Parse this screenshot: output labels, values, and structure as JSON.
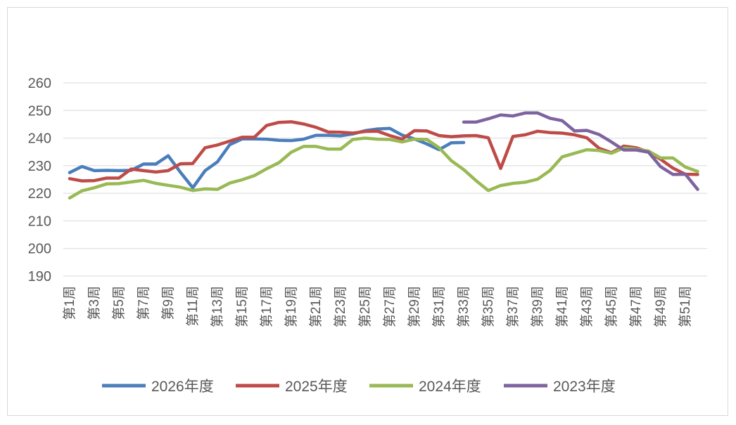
{
  "chart_data": {
    "type": "line",
    "title": "",
    "xlabel": "",
    "ylabel": "",
    "ylim": [
      190,
      260
    ],
    "yticks": [
      190,
      200,
      210,
      220,
      230,
      240,
      250,
      260
    ],
    "grid": "horizontal",
    "legend": "bottom",
    "categories": [
      "第1周",
      "第2周",
      "第3周",
      "第4周",
      "第5周",
      "第6周",
      "第7周",
      "第8周",
      "第9周",
      "第10周",
      "第11周",
      "第12周",
      "第13周",
      "第14周",
      "第15周",
      "第16周",
      "第17周",
      "第18周",
      "第19周",
      "第20周",
      "第21周",
      "第22周",
      "第23周",
      "第24周",
      "第25周",
      "第26周",
      "第27周",
      "第28周",
      "第29周",
      "第30周",
      "第31周",
      "第32周",
      "第33周",
      "第34周",
      "第35周",
      "第36周",
      "第37周",
      "第38周",
      "第39周",
      "第40周",
      "第41周",
      "第42周",
      "第43周",
      "第44周",
      "第45周",
      "第46周",
      "第47周",
      "第48周",
      "第49周",
      "第50周",
      "第51周",
      "第52周"
    ],
    "tick_labels": [
      "第1周",
      "第3周",
      "第5周",
      "第7周",
      "第9周",
      "第11周",
      "第13周",
      "第15周",
      "第17周",
      "第19周",
      "第21周",
      "第23周",
      "第25周",
      "第27周",
      "第29周",
      "第31周",
      "第33周",
      "第35周",
      "第37周",
      "第39周",
      "第41周",
      "第43周",
      "第45周",
      "第47周",
      "第49周",
      "第51周"
    ],
    "series": [
      {
        "name": "2026年度",
        "color": "#4a7ebb",
        "values": [
          227.5,
          229.7,
          228.2,
          228.3,
          228.2,
          228.3,
          230.6,
          230.6,
          233.6,
          227.6,
          222.0,
          228.2,
          231.4,
          237.6,
          239.7,
          239.7,
          239.6,
          239.2,
          239.1,
          239.6,
          241.0,
          241.0,
          240.8,
          241.5,
          242.7,
          243.3,
          243.5,
          241.1,
          239.7,
          237.9,
          235.8,
          238.3,
          238.4,
          null,
          null,
          null,
          null,
          null,
          null,
          null,
          null,
          null,
          null,
          null,
          null,
          null,
          null,
          null,
          null,
          null,
          null,
          null
        ]
      },
      {
        "name": "2025年度",
        "color": "#be4b48",
        "values": [
          225.3,
          224.5,
          224.6,
          225.5,
          225.5,
          228.8,
          228.2,
          227.7,
          228.2,
          230.7,
          230.8,
          236.5,
          237.5,
          238.9,
          240.3,
          240.3,
          244.6,
          245.7,
          245.9,
          245.1,
          243.9,
          242.2,
          242.1,
          241.8,
          242.4,
          242.5,
          240.9,
          239.6,
          242.7,
          242.6,
          240.9,
          240.5,
          240.8,
          240.9,
          240.1,
          229.0,
          240.6,
          241.2,
          242.5,
          242.0,
          241.8,
          241.2,
          240.1,
          236.3,
          234.7,
          237.1,
          236.5,
          235.0,
          232.3,
          229.1,
          226.9,
          226.8
        ]
      },
      {
        "name": "2024年度",
        "color": "#98b954",
        "values": [
          218.3,
          220.9,
          222.0,
          223.4,
          223.5,
          224.1,
          224.7,
          223.6,
          222.9,
          222.2,
          221.0,
          221.6,
          221.4,
          223.7,
          224.9,
          226.4,
          228.9,
          231.1,
          234.9,
          237.0,
          237.0,
          236.0,
          236.0,
          239.5,
          240.0,
          239.6,
          239.5,
          238.6,
          239.6,
          239.5,
          236.5,
          231.8,
          228.6,
          224.6,
          221.0,
          222.8,
          223.6,
          224.0,
          225.1,
          228.2,
          233.2,
          234.5,
          235.8,
          235.5,
          234.5,
          236.4,
          236.0,
          235.3,
          232.8,
          232.8,
          229.5,
          227.9
        ]
      },
      {
        "name": "2023年度",
        "color": "#7e63a1",
        "values": [
          null,
          null,
          null,
          null,
          null,
          null,
          null,
          null,
          null,
          null,
          null,
          null,
          null,
          null,
          null,
          null,
          null,
          null,
          null,
          null,
          null,
          null,
          null,
          null,
          null,
          null,
          null,
          null,
          null,
          null,
          null,
          null,
          245.8,
          245.8,
          247.0,
          248.4,
          248.0,
          249.1,
          249.1,
          247.2,
          246.3,
          242.6,
          242.8,
          241.3,
          238.6,
          235.7,
          235.7,
          234.9,
          229.6,
          226.8,
          226.9,
          221.4
        ]
      }
    ]
  }
}
